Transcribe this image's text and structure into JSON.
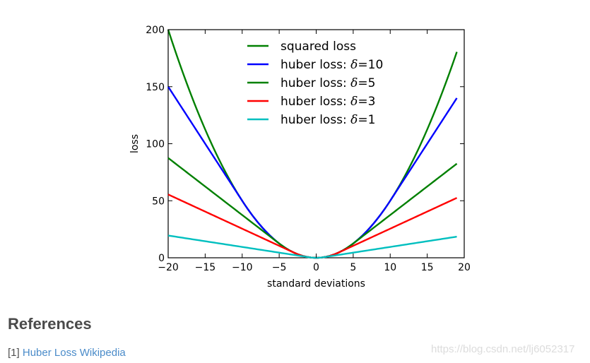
{
  "chart_data": {
    "type": "line",
    "xlabel": "standard deviations",
    "ylabel": "loss",
    "xlim": [
      -20,
      20
    ],
    "ylim": [
      0,
      200
    ],
    "xticks": [
      -20,
      -15,
      -10,
      -5,
      0,
      5,
      10,
      15,
      20
    ],
    "yticks": [
      0,
      50,
      100,
      150,
      200
    ],
    "x_tick_labels": [
      "−20",
      "−15",
      "−10",
      "−5",
      "0",
      "5",
      "10",
      "15",
      "20"
    ],
    "y_tick_labels": [
      "0",
      "50",
      "100",
      "150",
      "200"
    ],
    "x_range": [
      -20,
      19
    ],
    "grid": false,
    "legend_position": "top-center",
    "series": [
      {
        "name": "squared loss",
        "kind": "squared",
        "delta": null,
        "color": "#008000",
        "legend_prefix": "squared loss",
        "legend_delta": "",
        "legend_suffix": ""
      },
      {
        "name": "huber loss: δ=10",
        "kind": "huber",
        "delta": 10,
        "color": "#0000ff",
        "legend_prefix": "huber loss: ",
        "legend_delta": "δ",
        "legend_suffix": "=10"
      },
      {
        "name": "huber loss: δ=5",
        "kind": "huber",
        "delta": 5,
        "color": "#008000",
        "legend_prefix": "huber loss: ",
        "legend_delta": "δ",
        "legend_suffix": "=5"
      },
      {
        "name": "huber loss: δ=3",
        "kind": "huber",
        "delta": 3,
        "color": "#ff0000",
        "legend_prefix": "huber loss: ",
        "legend_delta": "δ",
        "legend_suffix": "=3"
      },
      {
        "name": "huber loss: δ=1",
        "kind": "huber",
        "delta": 1,
        "color": "#00bfbf",
        "legend_prefix": "huber loss: ",
        "legend_delta": "δ",
        "legend_suffix": "=1"
      }
    ]
  },
  "references": {
    "heading": "References",
    "items": [
      {
        "number": "[1]",
        "link_text": "Huber Loss Wikipedia"
      }
    ]
  },
  "watermark": "https://blog.csdn.net/lj6052317"
}
